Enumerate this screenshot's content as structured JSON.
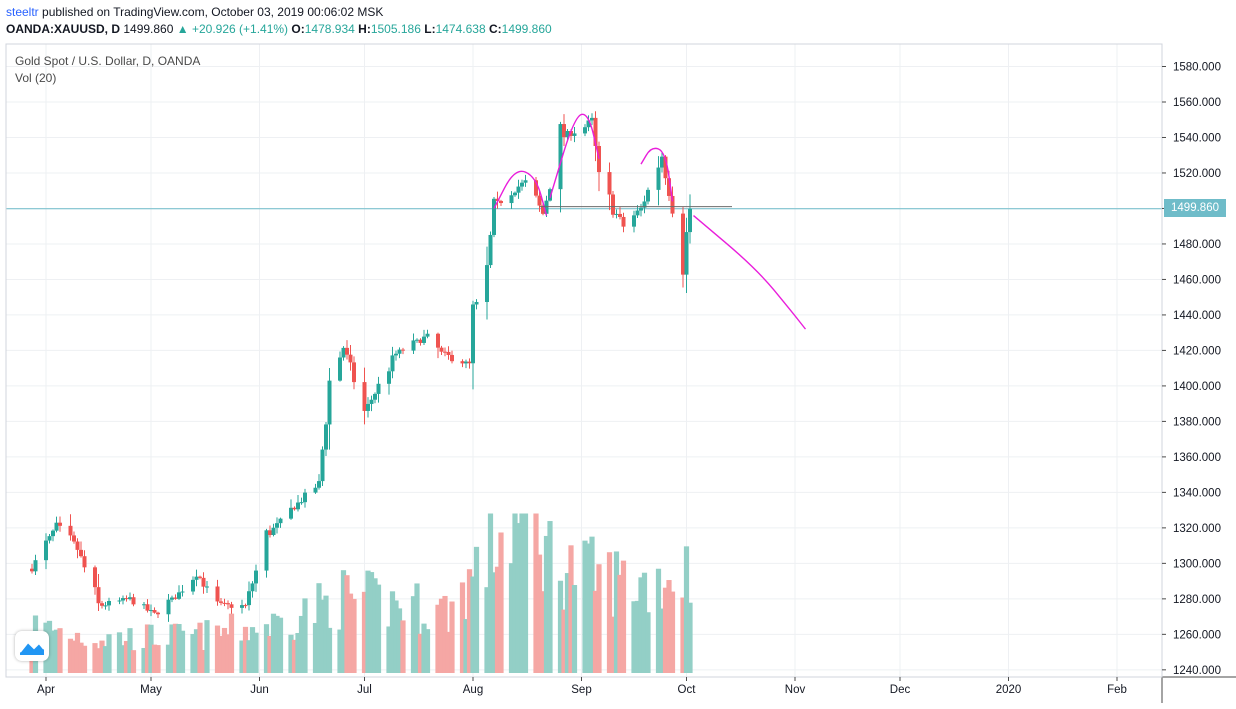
{
  "header": {
    "author": "steeltr",
    "published_text": "published on TradingView.com, October 03, 2019 00:06:02 MSK",
    "symbol": "OANDA:XAUUSD, D",
    "last": "1499.860",
    "change_arrow": "▲",
    "change": "+20.926 (+1.41%)",
    "o_label": "O:",
    "o_value": "1478.934",
    "h_label": "H:",
    "h_value": "1505.186",
    "l_label": "L:",
    "l_value": "1474.638",
    "c_label": "C:",
    "c_value": "1499.860"
  },
  "legend": {
    "title": "Gold Spot / U.S. Dollar, D, OANDA",
    "indicator": "Vol (20)"
  },
  "price_tag": "1499.860",
  "colors": {
    "up": "#26a69a",
    "down": "#ef5350",
    "vol_up": "#93cfc6",
    "vol_down": "#f5a7a4",
    "drawing": "#e91edb",
    "price_line": "#6fbcc9",
    "grid": "#eef0f3"
  },
  "chart_data": {
    "type": "candlestick",
    "title": "Gold Spot / U.S. Dollar, D, OANDA",
    "y_axis": {
      "labels": [
        "1580.000",
        "1560.000",
        "1540.000",
        "1520.000",
        "1500.000",
        "1480.000",
        "1460.000",
        "1440.000",
        "1420.000",
        "1400.000",
        "1380.000",
        "1360.000",
        "1340.000",
        "1320.000",
        "1300.000",
        "1280.000",
        "1260.000",
        "1240.000"
      ]
    },
    "x_axis": {
      "labels": [
        "Apr",
        "May",
        "Jun",
        "Jul",
        "Aug",
        "Sep",
        "Oct",
        "Nov",
        "Dec",
        "2020",
        "Feb"
      ]
    },
    "ylim": [
      1237,
      1590
    ],
    "last_price": 1499.86,
    "anchors": [
      [
        "2019-03-28",
        1297
      ],
      [
        "2019-04-04",
        1321
      ],
      [
        "2019-04-10",
        1308
      ],
      [
        "2019-04-16",
        1276
      ],
      [
        "2019-04-25",
        1280
      ],
      [
        "2019-05-02",
        1271
      ],
      [
        "2019-05-09",
        1283
      ],
      [
        "2019-05-14",
        1295
      ],
      [
        "2019-05-20",
        1276
      ],
      [
        "2019-05-28",
        1276
      ],
      [
        "2019-06-03",
        1315
      ],
      [
        "2019-06-10",
        1330
      ],
      [
        "2019-06-18",
        1345
      ],
      [
        "2019-06-21",
        1402
      ],
      [
        "2019-06-25",
        1422
      ],
      [
        "2019-07-01",
        1385
      ],
      [
        "2019-07-05",
        1400
      ],
      [
        "2019-07-10",
        1418
      ],
      [
        "2019-07-19",
        1428
      ],
      [
        "2019-07-23",
        1418
      ],
      [
        "2019-07-31",
        1412
      ],
      [
        "2019-08-01",
        1440
      ],
      [
        "2019-08-05",
        1465
      ],
      [
        "2019-08-07",
        1500
      ],
      [
        "2019-08-12",
        1510
      ],
      [
        "2019-08-16",
        1515
      ],
      [
        "2019-08-21",
        1497
      ],
      [
        "2019-08-26",
        1540
      ],
      [
        "2019-09-02",
        1546
      ],
      [
        "2019-09-04",
        1550
      ],
      [
        "2019-09-06",
        1515
      ],
      [
        "2019-09-10",
        1500
      ],
      [
        "2019-09-13",
        1490
      ],
      [
        "2019-09-18",
        1500
      ],
      [
        "2019-09-24",
        1530
      ],
      [
        "2019-09-27",
        1500
      ],
      [
        "2019-09-30",
        1470
      ],
      [
        "2019-10-02",
        1499.86
      ]
    ],
    "volume_anchors": [
      [
        "2019-03-28",
        0.35
      ],
      [
        "2019-04-15",
        0.25
      ],
      [
        "2019-05-15",
        0.27
      ],
      [
        "2019-06-05",
        0.35
      ],
      [
        "2019-06-25",
        0.55
      ],
      [
        "2019-07-10",
        0.5
      ],
      [
        "2019-07-25",
        0.45
      ],
      [
        "2019-08-08",
        0.95
      ],
      [
        "2019-08-15",
        1.1
      ],
      [
        "2019-08-25",
        0.8
      ],
      [
        "2019-09-05",
        0.7
      ],
      [
        "2019-09-20",
        0.65
      ],
      [
        "2019-10-02",
        0.75
      ]
    ],
    "drawings": {
      "left_shoulder": [
        [
          "2019-08-07",
          1500
        ],
        [
          "2019-08-13",
          1523
        ],
        [
          "2019-08-19",
          1518
        ],
        [
          "2019-08-22",
          1496
        ]
      ],
      "head": [
        [
          "2019-08-23",
          1506
        ],
        [
          "2019-08-30",
          1552
        ],
        [
          "2019-09-03",
          1554
        ],
        [
          "2019-09-06",
          1528
        ]
      ],
      "right_shoulder": [
        [
          "2019-09-18",
          1525
        ],
        [
          "2019-09-21",
          1535
        ],
        [
          "2019-09-25",
          1532
        ],
        [
          "2019-09-27",
          1504
        ]
      ],
      "neckline": [
        [
          "2019-08-20",
          1501
        ],
        [
          "2019-10-14",
          1501
        ]
      ],
      "projection": [
        [
          "2019-10-03",
          1496
        ],
        [
          "2019-10-21",
          1466
        ],
        [
          "2019-10-31",
          1442
        ],
        [
          "2019-11-04",
          1432
        ]
      ]
    }
  }
}
